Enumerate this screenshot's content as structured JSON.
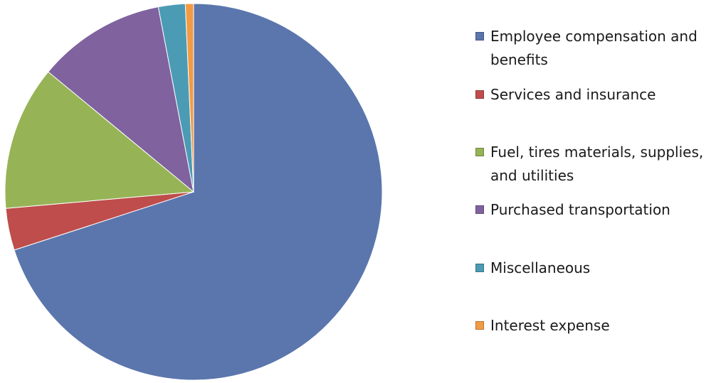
{
  "chart_data": {
    "type": "pie",
    "title": "",
    "legend_position": "right",
    "categories": [
      "Employee compensation and benefits",
      "Services and insurance",
      "Fuel, tires materials, supplies, and utilities",
      "Purchased transportation",
      "Miscellaneous",
      "Interest expense"
    ],
    "values": [
      70.0,
      3.6,
      12.4,
      11.0,
      2.3,
      0.7
    ],
    "colors": [
      "#5b76ad",
      "#bf4d4b",
      "#96b456",
      "#7f629e",
      "#4c9bb5",
      "#f29b45"
    ]
  }
}
